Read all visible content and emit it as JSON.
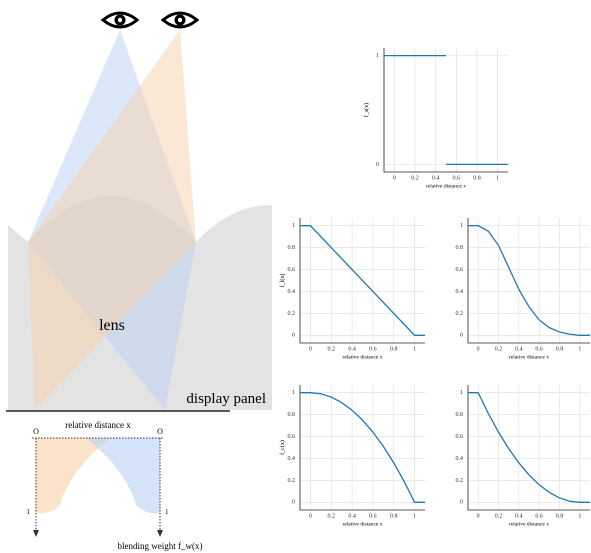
{
  "diagram": {
    "lens": "lens",
    "panel": "display panel",
    "axis_label": "relative distance x",
    "origin_left": "O",
    "origin_right": "O",
    "one_left": "1",
    "one_right": "1",
    "weight_label": "blending weight f_w(x)"
  },
  "chart_data": [
    {
      "type": "line",
      "ylabel": "f_s(x)",
      "xlabel": "relative distance x",
      "xlim": [
        -0.1,
        1.1
      ],
      "ylim": [
        -0.07,
        1.07
      ],
      "xticks": [
        0,
        0.2,
        0.4,
        0.6,
        0.8,
        1
      ],
      "yticks": [
        0,
        1
      ],
      "grid": true,
      "x": [
        -0.1,
        0.5,
        null,
        0.5,
        1.1
      ],
      "series": [
        {
          "color": "#1f77b4",
          "values": [
            1,
            1,
            null,
            0,
            0
          ]
        }
      ]
    },
    {
      "type": "line",
      "ylabel": "f_l(x)",
      "xlabel": "relative distance x",
      "xlim": [
        -0.1,
        1.1
      ],
      "ylim": [
        -0.07,
        1.07
      ],
      "xticks": [
        0,
        0.2,
        0.4,
        0.6,
        0.8,
        1
      ],
      "yticks": [
        0,
        0.2,
        0.4,
        0.6,
        0.8,
        1
      ],
      "grid": true,
      "x": [
        -0.1,
        0,
        1,
        1.1
      ],
      "series": [
        {
          "color": "#1f77b4",
          "values": [
            1,
            1,
            0,
            0
          ]
        }
      ]
    },
    {
      "type": "line",
      "xlabel": "relative distance x",
      "xlim": [
        -0.1,
        1.1
      ],
      "ylim": [
        -0.07,
        1.07
      ],
      "xticks": [
        0,
        0.2,
        0.4,
        0.6,
        0.8,
        1
      ],
      "yticks": [
        0,
        0.2,
        0.4,
        0.6,
        0.8,
        1
      ],
      "grid": true,
      "x": [
        -0.1,
        0,
        0.1,
        0.2,
        0.3,
        0.4,
        0.5,
        0.6,
        0.7,
        0.8,
        0.9,
        1,
        1.1
      ],
      "series": [
        {
          "color": "#1f77b4",
          "values": [
            1,
            1,
            0.95,
            0.82,
            0.62,
            0.42,
            0.26,
            0.14,
            0.07,
            0.03,
            0.01,
            0,
            0
          ]
        }
      ]
    },
    {
      "type": "line",
      "ylabel": "f_c(x)",
      "xlabel": "relative distance x",
      "xlim": [
        -0.1,
        1.1
      ],
      "ylim": [
        -0.07,
        1.07
      ],
      "xticks": [
        0,
        0.2,
        0.4,
        0.6,
        0.8,
        1
      ],
      "yticks": [
        0,
        0.2,
        0.4,
        0.6,
        0.8,
        1
      ],
      "grid": true,
      "x": [
        -0.1,
        0,
        0.1,
        0.2,
        0.3,
        0.4,
        0.5,
        0.6,
        0.7,
        0.8,
        0.9,
        1,
        1.1
      ],
      "series": [
        {
          "color": "#1f77b4",
          "values": [
            1,
            1,
            0.99,
            0.96,
            0.91,
            0.84,
            0.75,
            0.64,
            0.51,
            0.36,
            0.19,
            0,
            0
          ]
        }
      ]
    },
    {
      "type": "line",
      "xlabel": "relative distance x",
      "xlim": [
        -0.1,
        1.1
      ],
      "ylim": [
        -0.07,
        1.07
      ],
      "xticks": [
        0,
        0.2,
        0.4,
        0.6,
        0.8,
        1
      ],
      "yticks": [
        0,
        0.2,
        0.4,
        0.6,
        0.8,
        1
      ],
      "grid": true,
      "x": [
        -0.1,
        0,
        0.1,
        0.2,
        0.3,
        0.4,
        0.5,
        0.6,
        0.7,
        0.8,
        0.9,
        1,
        1.1
      ],
      "series": [
        {
          "color": "#1f77b4",
          "values": [
            1,
            1,
            0.81,
            0.64,
            0.49,
            0.36,
            0.25,
            0.16,
            0.09,
            0.04,
            0.01,
            0,
            0
          ]
        }
      ]
    }
  ]
}
